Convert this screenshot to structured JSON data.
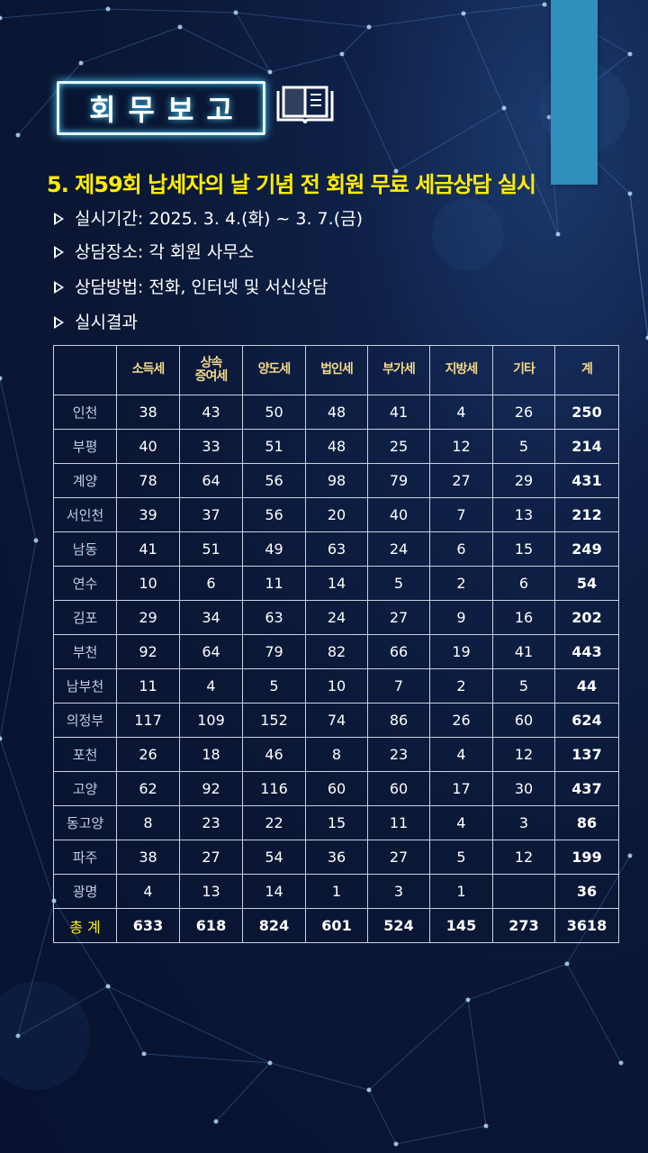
{
  "header": {
    "badge_text": "회무보고",
    "icon": "book-icon"
  },
  "section": {
    "title": "5. 제59회 납세자의 날 기념 전 회원 무료 세금상담 실시"
  },
  "bullets": [
    "실시기간: 2025. 3. 4.(화) ~ 3. 7.(금)",
    "상담장소: 각 회원 사무소",
    "상담방법: 전화, 인터넷 및 서신상담",
    "실시결과"
  ],
  "table": {
    "headers": [
      "",
      "소득세",
      "상속\n증여세",
      "양도세",
      "법인세",
      "부가세",
      "지방세",
      "기타",
      "계"
    ],
    "rows": [
      {
        "region": "인천",
        "values": [
          "38",
          "43",
          "50",
          "48",
          "41",
          "4",
          "26",
          "250"
        ]
      },
      {
        "region": "부평",
        "values": [
          "40",
          "33",
          "51",
          "48",
          "25",
          "12",
          "5",
          "214"
        ]
      },
      {
        "region": "계양",
        "values": [
          "78",
          "64",
          "56",
          "98",
          "79",
          "27",
          "29",
          "431"
        ]
      },
      {
        "region": "서인천",
        "values": [
          "39",
          "37",
          "56",
          "20",
          "40",
          "7",
          "13",
          "212"
        ]
      },
      {
        "region": "남동",
        "values": [
          "41",
          "51",
          "49",
          "63",
          "24",
          "6",
          "15",
          "249"
        ]
      },
      {
        "region": "연수",
        "values": [
          "10",
          "6",
          "11",
          "14",
          "5",
          "2",
          "6",
          "54"
        ]
      },
      {
        "region": "김포",
        "values": [
          "29",
          "34",
          "63",
          "24",
          "27",
          "9",
          "16",
          "202"
        ]
      },
      {
        "region": "부천",
        "values": [
          "92",
          "64",
          "79",
          "82",
          "66",
          "19",
          "41",
          "443"
        ]
      },
      {
        "region": "남부천",
        "values": [
          "11",
          "4",
          "5",
          "10",
          "7",
          "2",
          "5",
          "44"
        ]
      },
      {
        "region": "의정부",
        "values": [
          "117",
          "109",
          "152",
          "74",
          "86",
          "26",
          "60",
          "624"
        ]
      },
      {
        "region": "포천",
        "values": [
          "26",
          "18",
          "46",
          "8",
          "23",
          "4",
          "12",
          "137"
        ]
      },
      {
        "region": "고양",
        "values": [
          "62",
          "92",
          "116",
          "60",
          "60",
          "17",
          "30",
          "437"
        ]
      },
      {
        "region": "동고양",
        "values": [
          "8",
          "23",
          "22",
          "15",
          "11",
          "4",
          "3",
          "86"
        ]
      },
      {
        "region": "파주",
        "values": [
          "38",
          "27",
          "54",
          "36",
          "27",
          "5",
          "12",
          "199"
        ]
      },
      {
        "region": "광명",
        "values": [
          "4",
          "13",
          "14",
          "1",
          "3",
          "1",
          "",
          "36"
        ]
      }
    ],
    "total_row": {
      "region": "총 계",
      "values": [
        "633",
        "618",
        "824",
        "601",
        "524",
        "145",
        "273",
        "3618"
      ]
    }
  },
  "colors": {
    "accent": "#2f8fbd",
    "title": "#ffee00",
    "header_text": "#f4d98a"
  }
}
